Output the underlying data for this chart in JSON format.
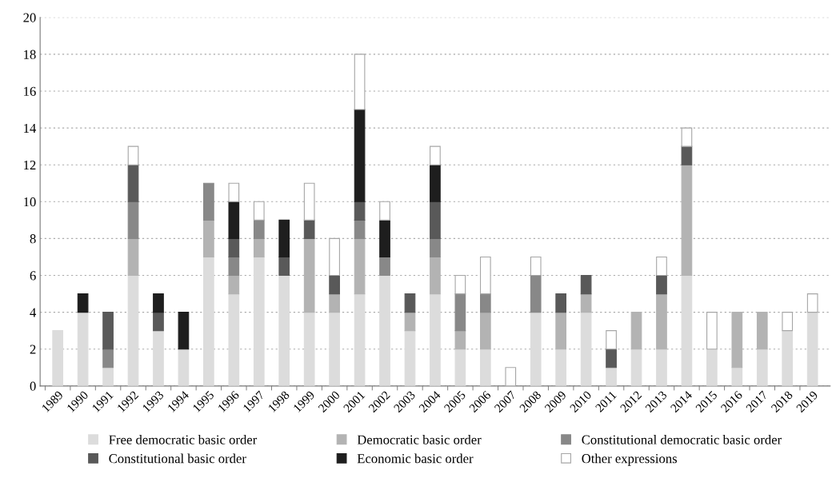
{
  "chart_data": {
    "type": "bar",
    "stacked": true,
    "categories": [
      "1989",
      "1990",
      "1991",
      "1992",
      "1993",
      "1994",
      "1995",
      "1996",
      "1997",
      "1998",
      "1999",
      "2000",
      "2001",
      "2002",
      "2003",
      "2004",
      "2005",
      "2006",
      "2007",
      "2008",
      "2009",
      "2010",
      "2011",
      "2012",
      "2013",
      "2014",
      "2015",
      "2016",
      "2017",
      "2018",
      "2019"
    ],
    "series": [
      {
        "name": "Free democratic basic order",
        "color": "#dcdcdc",
        "values": [
          3,
          4,
          1,
          6,
          3,
          2,
          7,
          5,
          7,
          6,
          4,
          4,
          5,
          6,
          3,
          5,
          2,
          2,
          0,
          4,
          2,
          4,
          1,
          2,
          2,
          6,
          2,
          1,
          2,
          3,
          4
        ]
      },
      {
        "name": "Democratic basic order",
        "color": "#b3b3b3",
        "values": [
          0,
          0,
          0,
          2,
          0,
          0,
          2,
          1,
          1,
          0,
          4,
          1,
          3,
          0,
          1,
          2,
          1,
          2,
          0,
          0,
          2,
          1,
          0,
          2,
          3,
          6,
          0,
          3,
          2,
          0,
          0
        ]
      },
      {
        "name": "Constitutional democratic basic order",
        "color": "#888888",
        "values": [
          0,
          0,
          1,
          2,
          0,
          0,
          2,
          1,
          1,
          0,
          0,
          0,
          1,
          1,
          0,
          1,
          2,
          1,
          0,
          2,
          0,
          0,
          0,
          0,
          0,
          0,
          0,
          0,
          0,
          0,
          0
        ]
      },
      {
        "name": "Constitutional basic order",
        "color": "#595959",
        "values": [
          0,
          0,
          2,
          2,
          1,
          0,
          0,
          1,
          0,
          1,
          1,
          1,
          1,
          0,
          1,
          2,
          0,
          0,
          0,
          0,
          1,
          1,
          1,
          0,
          1,
          1,
          0,
          0,
          0,
          0,
          0
        ]
      },
      {
        "name": "Economic basic order",
        "color": "#1e1e1e",
        "values": [
          0,
          1,
          0,
          0,
          1,
          2,
          0,
          2,
          0,
          2,
          0,
          0,
          5,
          2,
          0,
          2,
          0,
          0,
          0,
          0,
          0,
          0,
          0,
          0,
          0,
          0,
          0,
          0,
          0,
          0,
          0
        ]
      },
      {
        "name": "Other expressions",
        "color": "#ffffff",
        "values": [
          0,
          0,
          0,
          1,
          0,
          0,
          0,
          1,
          1,
          0,
          2,
          2,
          3,
          1,
          0,
          1,
          1,
          2,
          1,
          1,
          0,
          0,
          1,
          0,
          1,
          1,
          2,
          0,
          0,
          1,
          1
        ]
      }
    ],
    "ylim": [
      0,
      20
    ],
    "yticks": [
      0,
      2,
      4,
      6,
      8,
      10,
      12,
      14,
      16,
      18,
      20
    ],
    "grid": "y",
    "legend": "bottom"
  }
}
